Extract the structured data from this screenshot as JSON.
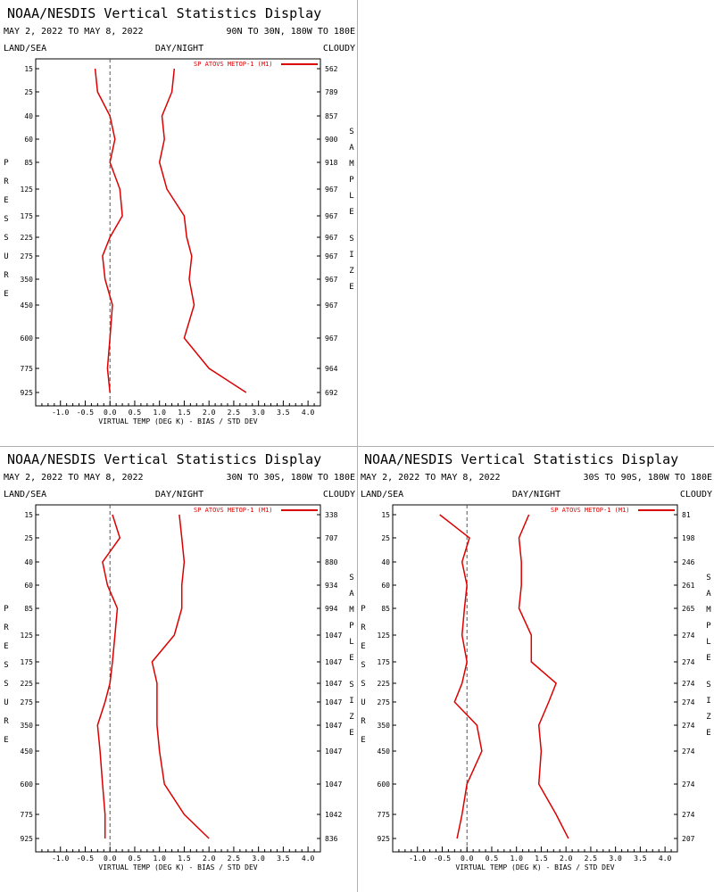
{
  "common": {
    "title": "NOAA/NESDIS Vertical Statistics Display",
    "dates": "MAY 2, 2022 TO MAY 8, 2022",
    "label_land_sea": "LAND/SEA",
    "label_day_night": "DAY/NIGHT",
    "label_cloudy": "CLOUDY",
    "legend_label": "SP ATOVS METOP-1 (M1)",
    "xlabel": "VIRTUAL TEMP (DEG K) - BIAS / STD DEV",
    "ylabel": "PRESSURE",
    "sample_label": "SAMPLE SIZE",
    "series_color": "#dd0000",
    "pressure_levels": [
      "15",
      "25",
      "40",
      "60",
      "85",
      "125",
      "175",
      "225",
      "275",
      "350",
      "450",
      "600",
      "775",
      "925"
    ],
    "x_ticks": [
      "-1.0",
      "-0.5",
      "0.0",
      "0.5",
      "1.0",
      "1.5",
      "2.0",
      "2.5",
      "3.0",
      "3.5",
      "4.0"
    ],
    "xlim": [
      -1.5,
      4.25
    ]
  },
  "chart_data": [
    {
      "type": "line",
      "region": "90N TO 30N, 180W TO 180E",
      "pressure": [
        15,
        25,
        40,
        60,
        85,
        125,
        175,
        225,
        275,
        350,
        450,
        600,
        775,
        925
      ],
      "sample_size": [
        "562",
        "789",
        "857",
        "900",
        "918",
        "967",
        "967",
        "967",
        "967",
        "967",
        "967",
        "967",
        "964",
        "692"
      ],
      "bias": [
        -0.3,
        -0.25,
        0.0,
        0.1,
        0.0,
        0.2,
        0.25,
        0.0,
        -0.15,
        -0.1,
        0.05,
        0.0,
        -0.05,
        0.0
      ],
      "std_dev": [
        1.3,
        1.25,
        1.05,
        1.1,
        1.0,
        1.15,
        1.5,
        1.55,
        1.65,
        1.6,
        1.7,
        1.5,
        2.0,
        2.75
      ]
    },
    {
      "type": "line",
      "region": "30N TO 30S, 180W TO 180E",
      "pressure": [
        15,
        25,
        40,
        60,
        85,
        125,
        175,
        225,
        275,
        350,
        450,
        600,
        775,
        925
      ],
      "sample_size": [
        "338",
        "707",
        "880",
        "934",
        "994",
        "1047",
        "1047",
        "1047",
        "1047",
        "1047",
        "1047",
        "1047",
        "1042",
        "836"
      ],
      "bias": [
        0.05,
        0.2,
        -0.15,
        -0.05,
        0.15,
        0.1,
        0.05,
        0.0,
        -0.1,
        -0.25,
        -0.2,
        -0.15,
        -0.1,
        -0.1
      ],
      "std_dev": [
        1.4,
        1.45,
        1.5,
        1.45,
        1.45,
        1.3,
        0.85,
        0.95,
        0.95,
        0.95,
        1.0,
        1.1,
        1.5,
        2.0
      ]
    },
    {
      "type": "line",
      "region": "30S TO 90S, 180W TO 180E",
      "pressure": [
        15,
        25,
        40,
        60,
        85,
        125,
        175,
        225,
        275,
        350,
        450,
        600,
        775,
        925
      ],
      "sample_size": [
        "81",
        "198",
        "246",
        "261",
        "265",
        "274",
        "274",
        "274",
        "274",
        "274",
        "274",
        "274",
        "274",
        "207"
      ],
      "bias": [
        -0.55,
        0.05,
        -0.1,
        0.0,
        -0.05,
        -0.1,
        0.0,
        -0.1,
        -0.25,
        0.2,
        0.3,
        0.0,
        -0.1,
        -0.2
      ],
      "std_dev": [
        1.25,
        1.05,
        1.1,
        1.1,
        1.05,
        1.3,
        1.3,
        1.8,
        1.65,
        1.45,
        1.5,
        1.45,
        1.8,
        2.05
      ]
    }
  ]
}
